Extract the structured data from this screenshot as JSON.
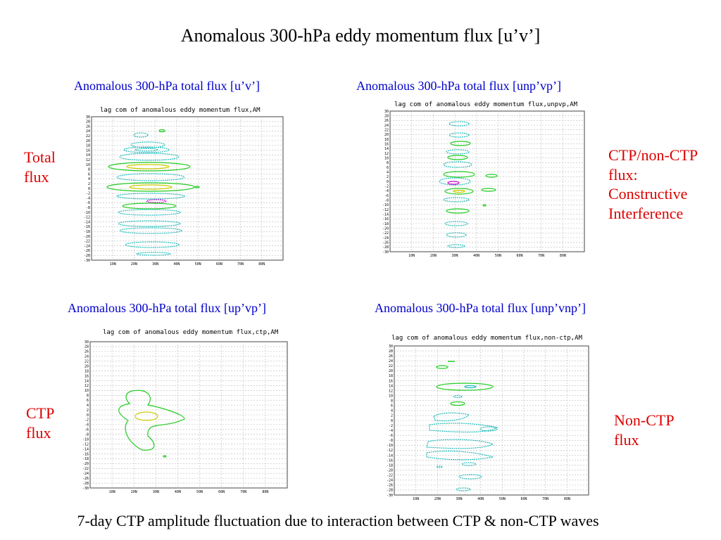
{
  "slide_title": "Anomalous 300-hPa eddy momentum flux [u’v’]",
  "footer": "7-day CTP amplitude fluctuation due to interaction between CTP & non-CTP waves",
  "labels": {
    "total": "Total flux",
    "ctp_nonctp": "CTP/non-CTP flux: Constructive Interference",
    "ctp": "CTP flux",
    "nonctp": "Non-CTP flux"
  },
  "panels": [
    {
      "title": "Anomalous 300-hPa  total flux [u’v’]",
      "caption": "lag com of anomalous eddy momentum flux,AM"
    },
    {
      "title": "Anomalous 300-hPa  total flux [unp’vp’]",
      "caption": "lag com of anomalous eddy momentum flux,unpvp,AM"
    },
    {
      "title": "Anomalous 300-hPa  total flux [up’vp’]",
      "caption": "lag com of anomalous eddy momentum flux,ctp,AM"
    },
    {
      "title": "Anomalous 300-hPa  total flux [unp’vnp’]",
      "caption": "lag com of anomalous eddy momentum flux,non-ctp,AM"
    }
  ],
  "axis": {
    "x_ticks": [
      "10N",
      "20N",
      "30N",
      "40N",
      "50N",
      "60N",
      "70N",
      "80N"
    ],
    "y_ticks": [
      "30",
      "28",
      "26",
      "24",
      "22",
      "20",
      "18",
      "16",
      "14",
      "12",
      "10",
      "8",
      "6",
      "4",
      "2",
      "0",
      "-2",
      "-4",
      "-6",
      "-8",
      "-10",
      "-12",
      "-14",
      "-16",
      "-18",
      "-20",
      "-22",
      "-24",
      "-26",
      "-28",
      "-30"
    ]
  },
  "colors": {
    "title": "#000000",
    "panel_title": "#0000cc",
    "label": "#dd0000",
    "contour_cyan": "#22bbbb",
    "contour_green": "#22cc22",
    "contour_yellow": "#cccc00",
    "contour_magenta": "#cc00cc"
  }
}
